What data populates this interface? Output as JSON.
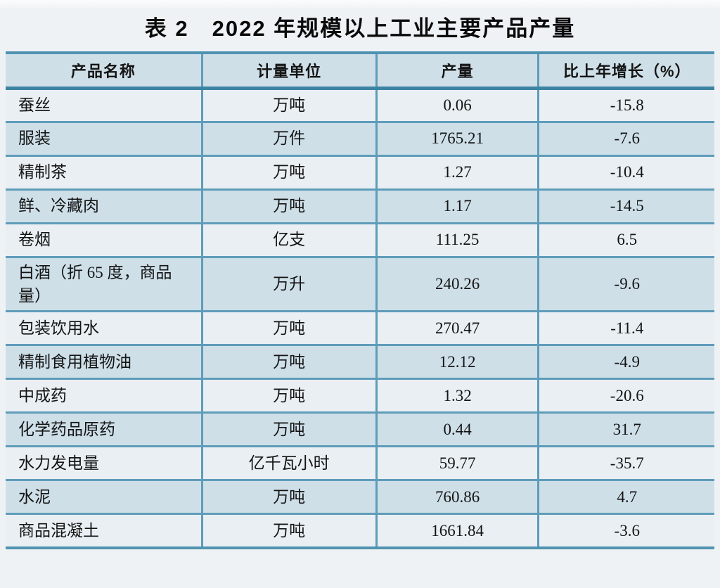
{
  "page_title": "表 2　2022 年规模以上工业主要产品产量",
  "table": {
    "columns": {
      "product": "产品名称",
      "unit": "计量单位",
      "output": "产量",
      "growth": "比上年增长（%）"
    },
    "rows": [
      {
        "name": "蚕丝",
        "unit": "万吨",
        "output": "0.06",
        "growth": "-15.8"
      },
      {
        "name": "服装",
        "unit": "万件",
        "output": "1765.21",
        "growth": "-7.6"
      },
      {
        "name": "精制茶",
        "unit": "万吨",
        "output": "1.27",
        "growth": "-10.4"
      },
      {
        "name": "鲜、冷藏肉",
        "unit": "万吨",
        "output": "1.17",
        "growth": "-14.5"
      },
      {
        "name": "卷烟",
        "unit": "亿支",
        "output": "111.25",
        "growth": "6.5"
      },
      {
        "name": "白酒（折 65 度，商品量）",
        "unit": "万升",
        "output": "240.26",
        "growth": "-9.6"
      },
      {
        "name": "包装饮用水",
        "unit": "万吨",
        "output": "270.47",
        "growth": "-11.4"
      },
      {
        "name": "精制食用植物油",
        "unit": "万吨",
        "output": "12.12",
        "growth": "-4.9"
      },
      {
        "name": "中成药",
        "unit": "万吨",
        "output": "1.32",
        "growth": "-20.6"
      },
      {
        "name": "化学药品原药",
        "unit": "万吨",
        "output": "0.44",
        "growth": "31.7"
      },
      {
        "name": "水力发电量",
        "unit": "亿千瓦小时",
        "output": "59.77",
        "growth": "-35.7"
      },
      {
        "name": "水泥",
        "unit": "万吨",
        "output": "760.86",
        "growth": "4.7"
      },
      {
        "name": "商品混凝土",
        "unit": "万吨",
        "output": "1661.84",
        "growth": "-3.6"
      }
    ]
  },
  "colors": {
    "page_bg": "#eff2f4",
    "border_teal": "#4f93b1",
    "separator_teal": "#5f9cba",
    "header_divider": "#3d84a4",
    "header_bg": "#cfdfe8",
    "row_light_bg": "#e9eff3",
    "row_dark_bg": "#cedfe8",
    "text": "#141414"
  }
}
